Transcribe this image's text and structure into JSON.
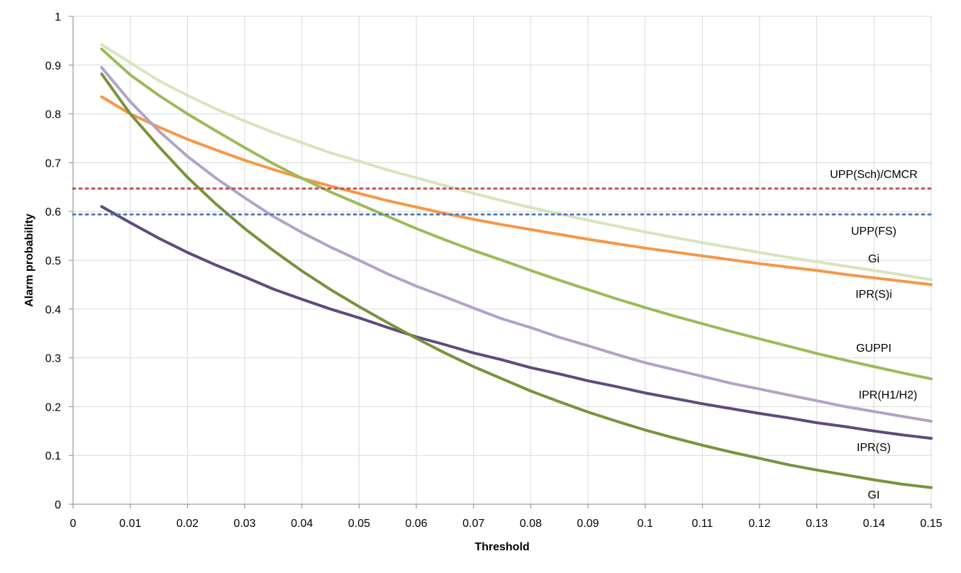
{
  "chart_data": {
    "type": "line",
    "title": "",
    "xlabel": "Threshold",
    "ylabel": "Alarm probability",
    "xlim": [
      0,
      0.15
    ],
    "ylim": [
      0,
      1
    ],
    "x_ticks": [
      "0",
      "0.01",
      "0.02",
      "0.03",
      "0.04",
      "0.05",
      "0.06",
      "0.07",
      "0.08",
      "0.09",
      "0.1",
      "0.11",
      "0.12",
      "0.13",
      "0.14",
      "0.15"
    ],
    "y_ticks": [
      "0",
      "0.1",
      "0.2",
      "0.3",
      "0.4",
      "0.5",
      "0.6",
      "0.7",
      "0.8",
      "0.9",
      "1"
    ],
    "grid": true,
    "legend": "none",
    "x": [
      0.005,
      0.01,
      0.015,
      0.02,
      0.025,
      0.03,
      0.035,
      0.04,
      0.045,
      0.05,
      0.055,
      0.06,
      0.065,
      0.07,
      0.075,
      0.08,
      0.085,
      0.09,
      0.095,
      0.1,
      0.105,
      0.11,
      0.115,
      0.12,
      0.125,
      0.13,
      0.135,
      0.14,
      0.145,
      0.15
    ],
    "series": [
      {
        "name": "Gi",
        "color": "#d7e4bd",
        "style": "solid",
        "values": [
          0.942,
          0.905,
          0.868,
          0.838,
          0.81,
          0.785,
          0.762,
          0.741,
          0.72,
          0.703,
          0.685,
          0.669,
          0.653,
          0.637,
          0.622,
          0.608,
          0.595,
          0.582,
          0.57,
          0.558,
          0.547,
          0.536,
          0.526,
          0.516,
          0.506,
          0.497,
          0.488,
          0.479,
          0.47,
          0.46
        ]
      },
      {
        "name": "IPR(S)i",
        "color": "#f79646",
        "style": "solid",
        "values": [
          0.835,
          0.8,
          0.773,
          0.748,
          0.726,
          0.705,
          0.686,
          0.668,
          0.652,
          0.637,
          0.622,
          0.609,
          0.596,
          0.584,
          0.573,
          0.563,
          0.553,
          0.543,
          0.534,
          0.525,
          0.517,
          0.509,
          0.501,
          0.493,
          0.486,
          0.479,
          0.471,
          0.464,
          0.457,
          0.45
        ]
      },
      {
        "name": "GUPPI",
        "color": "#9bbb59",
        "style": "solid",
        "values": [
          0.933,
          0.88,
          0.838,
          0.8,
          0.765,
          0.731,
          0.698,
          0.668,
          0.64,
          0.615,
          0.59,
          0.565,
          0.542,
          0.52,
          0.5,
          0.479,
          0.459,
          0.44,
          0.421,
          0.403,
          0.386,
          0.37,
          0.354,
          0.339,
          0.324,
          0.309,
          0.295,
          0.282,
          0.269,
          0.257
        ]
      },
      {
        "name": "IPR(H1/H2)",
        "color": "#b3a2c7",
        "style": "solid",
        "values": [
          0.895,
          0.825,
          0.765,
          0.713,
          0.668,
          0.628,
          0.59,
          0.557,
          0.527,
          0.5,
          0.472,
          0.447,
          0.425,
          0.402,
          0.38,
          0.362,
          0.342,
          0.325,
          0.307,
          0.29,
          0.276,
          0.262,
          0.248,
          0.236,
          0.224,
          0.212,
          0.2,
          0.19,
          0.18,
          0.17
        ]
      },
      {
        "name": "IPR(S)",
        "color": "#604a7b",
        "style": "solid",
        "values": [
          0.61,
          0.577,
          0.545,
          0.516,
          0.49,
          0.466,
          0.441,
          0.42,
          0.4,
          0.382,
          0.362,
          0.343,
          0.327,
          0.31,
          0.296,
          0.28,
          0.267,
          0.253,
          0.241,
          0.228,
          0.217,
          0.206,
          0.196,
          0.186,
          0.177,
          0.167,
          0.159,
          0.15,
          0.142,
          0.135
        ]
      },
      {
        "name": "GI",
        "color": "#77933c",
        "style": "solid",
        "values": [
          0.882,
          0.8,
          0.733,
          0.67,
          0.615,
          0.565,
          0.52,
          0.478,
          0.44,
          0.405,
          0.372,
          0.34,
          0.31,
          0.282,
          0.257,
          0.232,
          0.21,
          0.189,
          0.17,
          0.152,
          0.136,
          0.121,
          0.107,
          0.094,
          0.081,
          0.07,
          0.06,
          0.05,
          0.041,
          0.034
        ]
      },
      {
        "name": "UPP(Sch)/CMCR",
        "color": "#c0504d",
        "style": "dotted",
        "constant": 0.647
      },
      {
        "name": "UPP(FS)",
        "color": "#4f81bd",
        "style": "dotted",
        "constant": 0.594
      }
    ]
  }
}
